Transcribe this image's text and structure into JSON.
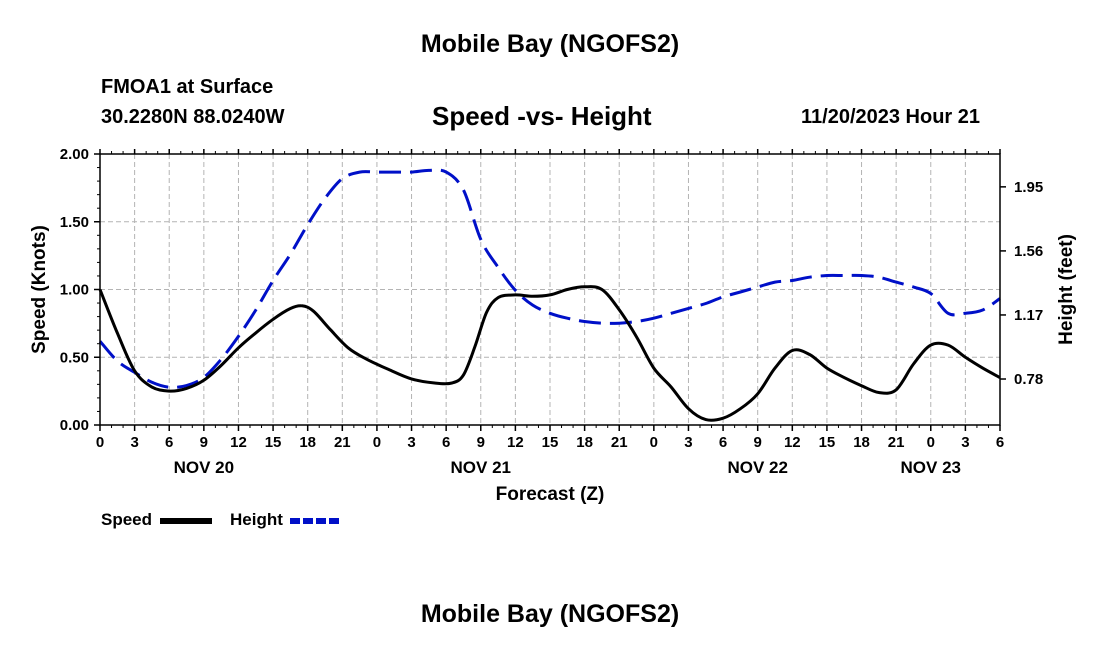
{
  "header": {
    "title": "Mobile Bay (NGOFS2)",
    "station": "FMOA1 at Surface",
    "coordinates": "30.2280N  88.0240W",
    "date_hour": "11/20/2023 Hour 21"
  },
  "footer": {
    "title": "Mobile Bay (NGOFS2)"
  },
  "legend": {
    "speed_label": "Speed",
    "height_label": "Height"
  },
  "colors": {
    "speed": "#000000",
    "height": "#0010c8",
    "grid": "#b4b4b4"
  },
  "chart_data": {
    "type": "line",
    "title": "Speed -vs- Height",
    "xlabel": "Forecast (Z)",
    "ylabel": "Speed (Knots)",
    "y2label": "Height (feet)",
    "x_hours_range": [
      0,
      78
    ],
    "x_tick_labels": [
      "0",
      "3",
      "6",
      "9",
      "12",
      "15",
      "18",
      "21",
      "0",
      "3",
      "6",
      "9",
      "12",
      "15",
      "18",
      "21",
      "0",
      "3",
      "6",
      "9",
      "12",
      "15",
      "18",
      "21",
      "0",
      "3",
      "6"
    ],
    "date_labels": [
      {
        "label": "NOV 20",
        "hour": 9
      },
      {
        "label": "NOV 21",
        "hour": 33
      },
      {
        "label": "NOV 22",
        "hour": 57
      },
      {
        "label": "NOV 23",
        "hour": 72
      }
    ],
    "ylim": [
      0,
      2
    ],
    "y_ticks": [
      "0.00",
      "0.50",
      "1.00",
      "1.50",
      "2.00"
    ],
    "y2lim": [
      0.5,
      2.15
    ],
    "y2_ticks": [
      "0.78",
      "1.17",
      "1.56",
      "1.95"
    ],
    "grid": true,
    "legend_position": "bottom-left",
    "series": [
      {
        "name": "Speed",
        "axis": "left",
        "style": "solid",
        "hours": [
          0,
          1.5,
          3,
          4.5,
          6,
          7.5,
          9,
          10.5,
          12,
          13.5,
          15,
          16.5,
          17.5,
          18.5,
          20,
          21.5,
          23,
          25,
          27,
          29,
          30.5,
          31.5,
          32.5,
          33.5,
          34.5,
          36,
          37.5,
          39,
          40.5,
          42,
          43.5,
          45,
          46.5,
          48,
          49.5,
          51,
          52.5,
          54,
          55.5,
          57,
          58.5,
          60,
          61.5,
          63,
          64.5,
          66,
          67.5,
          69,
          70.5,
          72,
          73.5,
          75,
          76.5,
          78
        ],
        "values": [
          1.0,
          0.68,
          0.4,
          0.28,
          0.25,
          0.27,
          0.33,
          0.44,
          0.57,
          0.68,
          0.78,
          0.86,
          0.88,
          0.84,
          0.7,
          0.57,
          0.49,
          0.41,
          0.34,
          0.31,
          0.31,
          0.37,
          0.58,
          0.83,
          0.94,
          0.96,
          0.95,
          0.96,
          1.0,
          1.02,
          1.0,
          0.85,
          0.65,
          0.42,
          0.28,
          0.12,
          0.04,
          0.05,
          0.12,
          0.23,
          0.42,
          0.55,
          0.52,
          0.42,
          0.35,
          0.29,
          0.24,
          0.26,
          0.45,
          0.59,
          0.59,
          0.5,
          0.42,
          0.35
        ]
      },
      {
        "name": "Height",
        "axis": "right",
        "style": "dashed",
        "hours": [
          0,
          1.5,
          3,
          4.5,
          6,
          7.5,
          9,
          10.5,
          12,
          13.5,
          15,
          16.5,
          18,
          19.5,
          21,
          22.5,
          24,
          25.5,
          27,
          28.5,
          30,
          31.5,
          33,
          34.5,
          36,
          37.5,
          39,
          40.5,
          42,
          43.5,
          45,
          46.5,
          48,
          49.5,
          51,
          52.5,
          54,
          55.5,
          57,
          58.5,
          60,
          61.5,
          63,
          64.5,
          66,
          67.5,
          69,
          70.5,
          72,
          73.5,
          75,
          76.5,
          78
        ],
        "values": [
          1.01,
          0.89,
          0.82,
          0.76,
          0.73,
          0.74,
          0.79,
          0.9,
          1.04,
          1.2,
          1.38,
          1.54,
          1.72,
          1.88,
          2.0,
          2.04,
          2.04,
          2.04,
          2.04,
          2.05,
          2.04,
          1.93,
          1.63,
          1.46,
          1.32,
          1.23,
          1.18,
          1.15,
          1.13,
          1.12,
          1.12,
          1.13,
          1.15,
          1.18,
          1.21,
          1.24,
          1.28,
          1.31,
          1.34,
          1.37,
          1.38,
          1.4,
          1.41,
          1.41,
          1.41,
          1.4,
          1.37,
          1.34,
          1.3,
          1.18,
          1.18,
          1.2,
          1.27
        ]
      }
    ]
  }
}
